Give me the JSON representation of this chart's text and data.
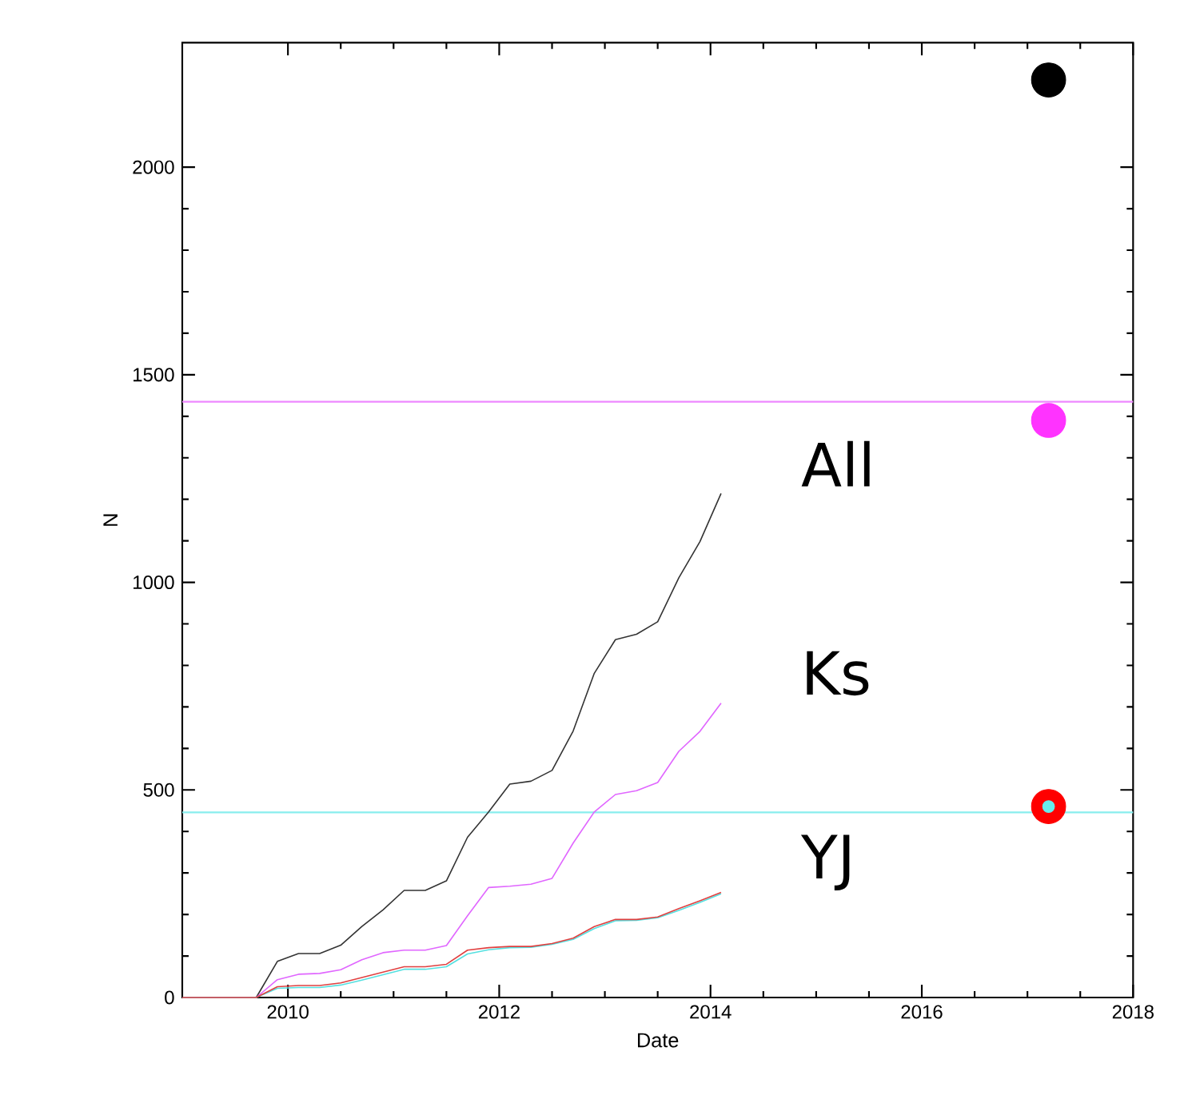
{
  "chart_data": {
    "type": "line",
    "xlabel": "Date",
    "ylabel": "N",
    "xlim": [
      2009,
      2018
    ],
    "ylim": [
      0,
      2300
    ],
    "xticks": [
      2010,
      2012,
      2014,
      2016,
      2018
    ],
    "yticks": [
      0,
      500,
      1000,
      1500,
      2000
    ],
    "grid": false,
    "series": [
      {
        "name": "All",
        "color": "#333333",
        "x": [
          2009.0,
          2009.7,
          2009.9,
          2010.1,
          2010.3,
          2010.5,
          2010.7,
          2010.9,
          2011.1,
          2011.3,
          2011.5,
          2011.7,
          2011.9,
          2012.1,
          2012.3,
          2012.5,
          2012.7,
          2012.9,
          2013.1,
          2013.3,
          2013.5,
          2013.7,
          2013.9,
          2014.1
        ],
        "values": [
          0,
          0,
          87,
          106,
          106,
          126,
          171,
          211,
          258,
          258,
          281,
          386,
          447,
          514,
          521,
          547,
          642,
          781,
          862,
          875,
          905,
          1011,
          1098,
          1214
        ]
      },
      {
        "name": "Ks",
        "color": "#e066ff",
        "x": [
          2009.0,
          2009.7,
          2009.9,
          2010.1,
          2010.3,
          2010.5,
          2010.7,
          2010.9,
          2011.1,
          2011.3,
          2011.5,
          2011.7,
          2011.9,
          2012.1,
          2012.3,
          2012.5,
          2012.7,
          2012.9,
          2013.1,
          2013.3,
          2013.5,
          2013.7,
          2013.9,
          2014.1
        ],
        "values": [
          0,
          0,
          43,
          56,
          58,
          67,
          91,
          108,
          114,
          114,
          125,
          197,
          265,
          268,
          273,
          287,
          372,
          447,
          489,
          498,
          518,
          593,
          641,
          709
        ]
      },
      {
        "color": "#55e0e0",
        "x": [
          2009.0,
          2009.7,
          2009.9,
          2010.1,
          2010.3,
          2010.5,
          2010.7,
          2010.9,
          2011.1,
          2011.3,
          2011.5,
          2011.7,
          2011.9,
          2012.1,
          2012.3,
          2012.5,
          2012.7,
          2012.9,
          2013.1,
          2013.3,
          2013.5,
          2013.7,
          2013.9,
          2014.1
        ],
        "values": [
          0,
          0,
          22,
          24,
          24,
          30,
          42,
          55,
          68,
          68,
          74,
          105,
          115,
          120,
          121,
          128,
          140,
          166,
          185,
          186,
          192,
          210,
          229,
          250
        ]
      },
      {
        "name": "YJ",
        "color": "#e04040",
        "x": [
          2009.0,
          2009.7,
          2009.9,
          2010.1,
          2010.3,
          2010.5,
          2010.7,
          2010.9,
          2011.1,
          2011.3,
          2011.5,
          2011.7,
          2011.9,
          2012.1,
          2012.3,
          2012.5,
          2012.7,
          2012.9,
          2013.1,
          2013.3,
          2013.5,
          2013.7,
          2013.9,
          2014.1
        ],
        "values": [
          0,
          0,
          26,
          29,
          29,
          35,
          48,
          61,
          74,
          74,
          80,
          114,
          120,
          123,
          123,
          130,
          143,
          171,
          188,
          188,
          194,
          214,
          233,
          253
        ]
      },
      {
        "type": "bubble",
        "color": "#000000",
        "x": [
          2017.2
        ],
        "values": [
          2210
        ],
        "sizes": [
          1
        ]
      },
      {
        "type": "bubble",
        "color": "#ff33ff",
        "x": [
          2017.2
        ],
        "values": [
          1390
        ],
        "sizes": [
          1
        ]
      },
      {
        "type": "bubble",
        "color": "#ff0000",
        "x": [
          2017.2
        ],
        "values": [
          460
        ],
        "sizes": [
          1
        ]
      },
      {
        "type": "bubble",
        "color": "#66eeee",
        "x": [
          2017.2
        ],
        "values": [
          460
        ],
        "sizes": [
          0.12
        ]
      }
    ],
    "ref_lines": [
      {
        "axis": "y",
        "value": 1435,
        "color": "#ee88ff"
      },
      {
        "axis": "y",
        "value": 446,
        "color": "#88eeee"
      }
    ]
  }
}
